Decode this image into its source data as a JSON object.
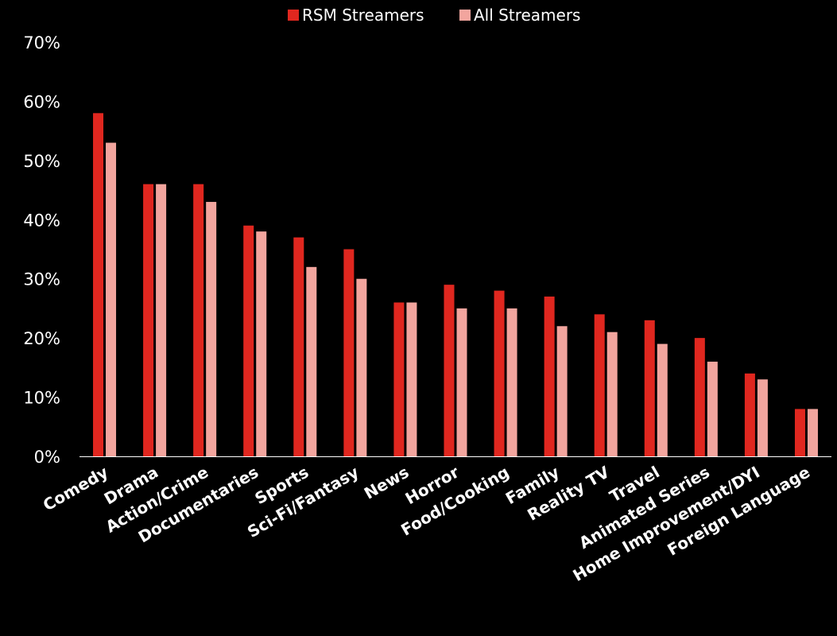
{
  "chart_data": {
    "type": "bar",
    "categories": [
      "Comedy",
      "Drama",
      "Action/Crime",
      "Documentaries",
      "Sports",
      "Sci-Fi/Fantasy",
      "News",
      "Horror",
      "Food/Cooking",
      "Family",
      "Reality TV",
      "Travel",
      "Animated Series",
      "Home Improvement/DYI",
      "Foreign Language"
    ],
    "series": [
      {
        "name": "RSM Streamers",
        "values": [
          58,
          46,
          46,
          39,
          37,
          35,
          26,
          29,
          28,
          27,
          24,
          23,
          20,
          14,
          8
        ],
        "color": "#e0271f"
      },
      {
        "name": "All Streamers",
        "values": [
          53,
          46,
          43,
          38,
          32,
          30,
          26,
          25,
          25,
          22,
          21,
          19,
          16,
          13,
          8
        ],
        "color": "#f2a59e"
      }
    ],
    "y_ticks": [
      "0%",
      "10%",
      "20%",
      "30%",
      "40%",
      "50%",
      "60%",
      "70%"
    ],
    "ylim": [
      0,
      70
    ],
    "grid": false,
    "legend_position": "top-center",
    "title": "",
    "xlabel": "",
    "ylabel": ""
  },
  "colors": {
    "background": "#000000",
    "text": "#ffffff",
    "axis": "#ffffff"
  }
}
